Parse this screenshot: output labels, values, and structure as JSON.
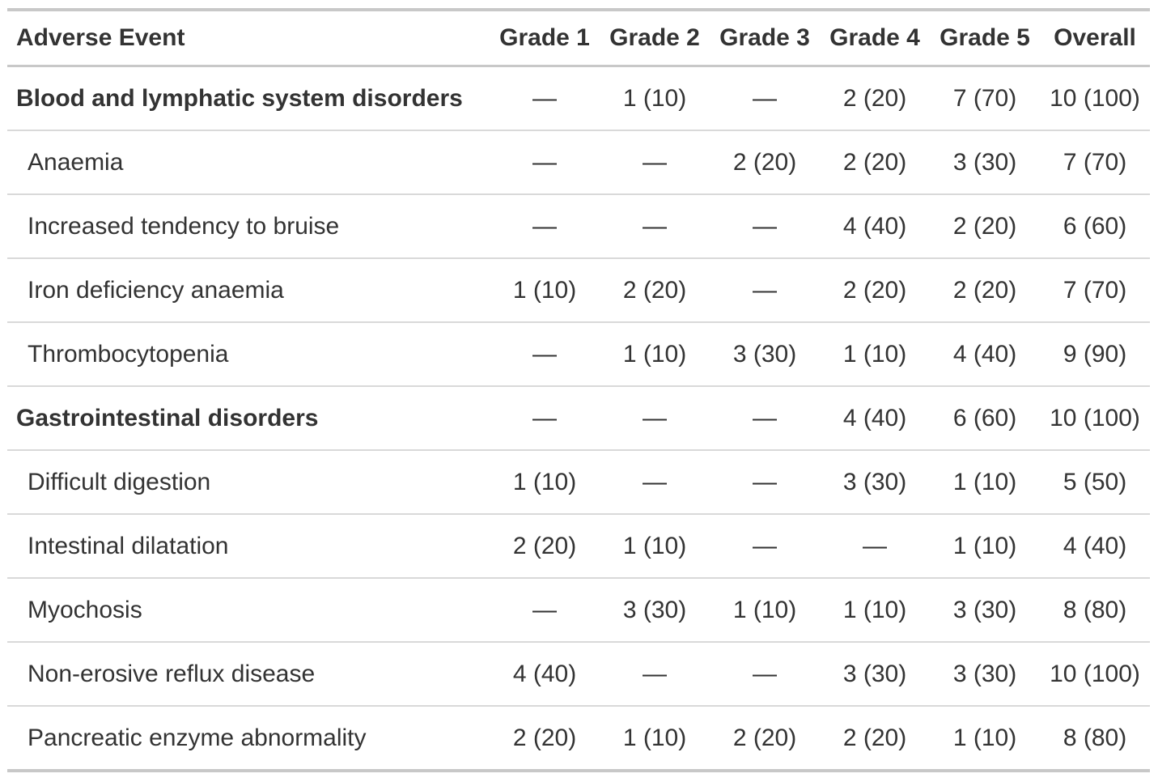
{
  "chart_data": {
    "type": "table",
    "columns": [
      "Adverse Event",
      "Grade 1",
      "Grade 2",
      "Grade 3",
      "Grade 4",
      "Grade 5",
      "Overall"
    ],
    "rows": [
      {
        "label": "Blood and lymphatic system disorders",
        "group": true,
        "values": [
          "—",
          "1 (10)",
          "—",
          "2 (20)",
          "7 (70)",
          "10 (100)"
        ]
      },
      {
        "label": "Anaemia",
        "group": false,
        "values": [
          "—",
          "—",
          "2 (20)",
          "2 (20)",
          "3 (30)",
          "7 (70)"
        ]
      },
      {
        "label": "Increased tendency to bruise",
        "group": false,
        "values": [
          "—",
          "—",
          "—",
          "4 (40)",
          "2 (20)",
          "6 (60)"
        ]
      },
      {
        "label": "Iron deficiency anaemia",
        "group": false,
        "values": [
          "1 (10)",
          "2 (20)",
          "—",
          "2 (20)",
          "2 (20)",
          "7 (70)"
        ]
      },
      {
        "label": "Thrombocytopenia",
        "group": false,
        "values": [
          "—",
          "1 (10)",
          "3 (30)",
          "1 (10)",
          "4 (40)",
          "9 (90)"
        ]
      },
      {
        "label": "Gastrointestinal disorders",
        "group": true,
        "values": [
          "—",
          "—",
          "—",
          "4 (40)",
          "6 (60)",
          "10 (100)"
        ]
      },
      {
        "label": "Difficult digestion",
        "group": false,
        "values": [
          "1 (10)",
          "—",
          "—",
          "3 (30)",
          "1 (10)",
          "5 (50)"
        ]
      },
      {
        "label": "Intestinal dilatation",
        "group": false,
        "values": [
          "2 (20)",
          "1 (10)",
          "—",
          "—",
          "1 (10)",
          "4 (40)"
        ]
      },
      {
        "label": "Myochosis",
        "group": false,
        "values": [
          "—",
          "3 (30)",
          "1 (10)",
          "1 (10)",
          "3 (30)",
          "8 (80)"
        ]
      },
      {
        "label": "Non-erosive reflux disease",
        "group": false,
        "values": [
          "4 (40)",
          "—",
          "—",
          "3 (30)",
          "3 (30)",
          "10 (100)"
        ]
      },
      {
        "label": "Pancreatic enzyme abnormality",
        "group": false,
        "values": [
          "2 (20)",
          "1 (10)",
          "2 (20)",
          "2 (20)",
          "1 (10)",
          "8 (80)"
        ]
      }
    ],
    "layout": {
      "grid": "horizontal-rules-only",
      "numeric_alignment": "center",
      "empty_cell_glyph": "—"
    }
  },
  "colors": {
    "text": "#333333",
    "outer_border": "#c8c8c8",
    "row_separator": "#d9d9d9",
    "background": "#ffffff"
  }
}
